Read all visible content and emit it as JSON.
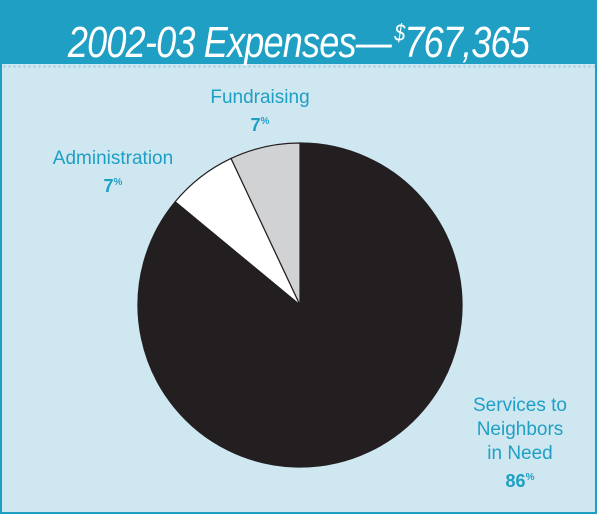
{
  "header": {
    "title_prefix": "2002-03 Expenses—",
    "title_currency": "$",
    "title_amount": "767,365"
  },
  "chart_data": {
    "type": "pie",
    "categories": [
      "Services to Neighbors in Need",
      "Administration",
      "Fundraising"
    ],
    "values": [
      86,
      7,
      7
    ],
    "unit": "%",
    "colors": [
      "#231f20",
      "#ffffff",
      "#d0d2d3"
    ]
  },
  "labels": {
    "fundraising": {
      "name": "Fundraising",
      "value": "7",
      "unit": "%"
    },
    "administration": {
      "name": "Administration",
      "value": "7",
      "unit": "%"
    },
    "services": {
      "line1": "Services to",
      "line2": "Neighbors",
      "line3": "in Need",
      "value": "86",
      "unit": "%"
    }
  }
}
